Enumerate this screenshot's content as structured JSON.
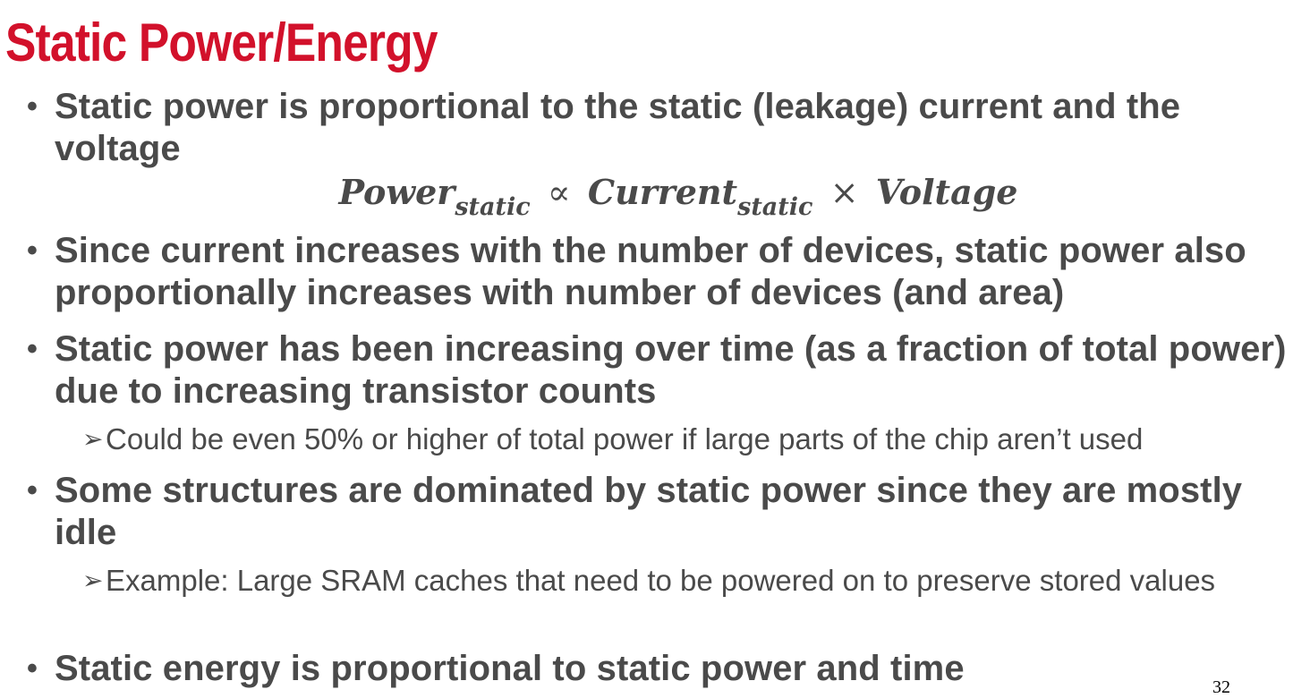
{
  "slide": {
    "title": "Static Power/Energy",
    "bullets": [
      {
        "text": "Static power is proportional to the static (leakage) current and the voltage"
      },
      {
        "text": "Since current increases with the number of devices, static power also proportionally increases with number of devices (and area)"
      },
      {
        "text": "Static power has been increasing over time (as a fraction of total power) due to increasing transistor counts",
        "sub": "Could be even 50% or higher of total power if large parts of the chip aren’t used"
      },
      {
        "text": "Some structures are dominated by static power since they are mostly idle",
        "sub": "Example: Large SRAM caches that need to be powered on to preserve stored values"
      },
      {
        "text": "Static energy is proportional to static power and time"
      }
    ],
    "equation": {
      "lhs": "Power",
      "lhs_sub": "static",
      "op1": "∝",
      "term1": "Current",
      "term1_sub": "static",
      "op2": "×",
      "term2": "Voltage"
    },
    "bullet_glyph": "•",
    "sub_glyph": "➢",
    "page_number": "32",
    "colors": {
      "title": "#d2112b",
      "body_text": "#4a4a4a",
      "background": "#ffffff"
    }
  }
}
